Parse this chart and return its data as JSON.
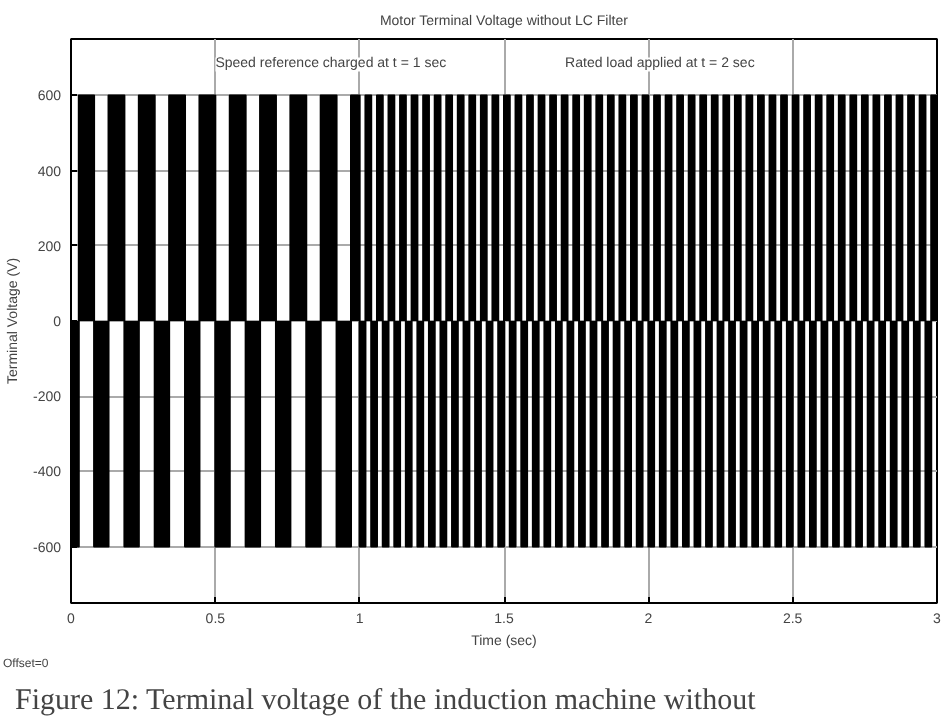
{
  "chart_data": {
    "type": "area",
    "title": "Motor Terminal Voltage without LC Filter",
    "xlabel": "Time (sec)",
    "ylabel": "Terminal Voltage (V)",
    "x": [
      0,
      0.027,
      0.08,
      0.13,
      0.185,
      0.235,
      0.29,
      0.34,
      0.395,
      0.445,
      0.5,
      0.55,
      0.605,
      0.655,
      0.71,
      0.76,
      0.815,
      0.865,
      0.92,
      0.97,
      1,
      1.02,
      1.04,
      1.06,
      1.08,
      1.1,
      1.12,
      1.14,
      1.16,
      1.18,
      1.2,
      1.22,
      1.24,
      1.26,
      1.28,
      1.3,
      1.32,
      1.34,
      1.36,
      1.38,
      1.4,
      1.42,
      1.44,
      1.46,
      1.48,
      1.5,
      1.52,
      1.54,
      1.56,
      1.58,
      1.6,
      1.62,
      1.64,
      1.66,
      1.68,
      1.7,
      1.72,
      1.74,
      1.76,
      1.78,
      1.8,
      1.82,
      1.84,
      1.86,
      1.88,
      1.9,
      1.92,
      1.94,
      1.96,
      1.98,
      2,
      2.02,
      2.04,
      2.06,
      2.08,
      2.1,
      2.12,
      2.14,
      2.16,
      2.18,
      2.2,
      2.22,
      2.24,
      2.26,
      2.28,
      2.3,
      2.32,
      2.34,
      2.36,
      2.38,
      2.4,
      2.42,
      2.44,
      2.46,
      2.48,
      2.5,
      2.52,
      2.54,
      2.56,
      2.58,
      2.6,
      2.62,
      2.64,
      2.66,
      2.68,
      2.7,
      2.72,
      2.74,
      2.76,
      2.78,
      2.8,
      2.82,
      2.84,
      2.86,
      2.88,
      2.9,
      2.92,
      2.94,
      2.96,
      2.98,
      3
    ],
    "series": [
      {
        "color": "#000000",
        "values": [
          -600,
          600,
          -600,
          600,
          -600,
          600,
          -600,
          600,
          -600,
          600,
          -600,
          600,
          -600,
          600,
          -600,
          600,
          -600,
          600,
          -600,
          600,
          -600,
          600,
          -600,
          600,
          -600,
          600,
          -600,
          600,
          -600,
          600,
          -600,
          600,
          -600,
          600,
          -600,
          600,
          -600,
          600,
          -600,
          600,
          -600,
          600,
          -600,
          600,
          -600,
          600,
          -600,
          600,
          -600,
          600,
          -600,
          600,
          -600,
          600,
          -600,
          600,
          -600,
          600,
          -600,
          600,
          -600,
          600,
          -600,
          600,
          -600,
          600,
          -600,
          600,
          -600,
          600,
          -600,
          600,
          -600,
          600,
          -600,
          600,
          -600,
          600,
          -600,
          600,
          -600,
          600,
          -600,
          600,
          -600,
          600,
          -600,
          600,
          -600,
          600,
          -600,
          600,
          -600,
          600,
          -600,
          600,
          -600,
          600,
          -600,
          600,
          -600,
          600,
          -600,
          600,
          -600,
          600,
          -600,
          600,
          -600,
          600,
          -600,
          600,
          -600,
          600,
          -600,
          600,
          -600,
          600,
          -600,
          600,
          600
        ]
      }
    ],
    "xlim": [
      0,
      3
    ],
    "ylim": [
      -750,
      750
    ],
    "xticks": [
      0,
      0.5,
      1,
      1.5,
      2,
      2.5,
      3
    ],
    "yticks": [
      -600,
      -400,
      -200,
      0,
      200,
      400,
      600
    ],
    "grid": true,
    "annotations": [
      "Speed reference charged at t = 1 sec",
      "Rated load applied at t = 2 sec",
      "Offset=0",
      "Figure 12: Terminal voltage of the induction  machine without"
    ]
  }
}
